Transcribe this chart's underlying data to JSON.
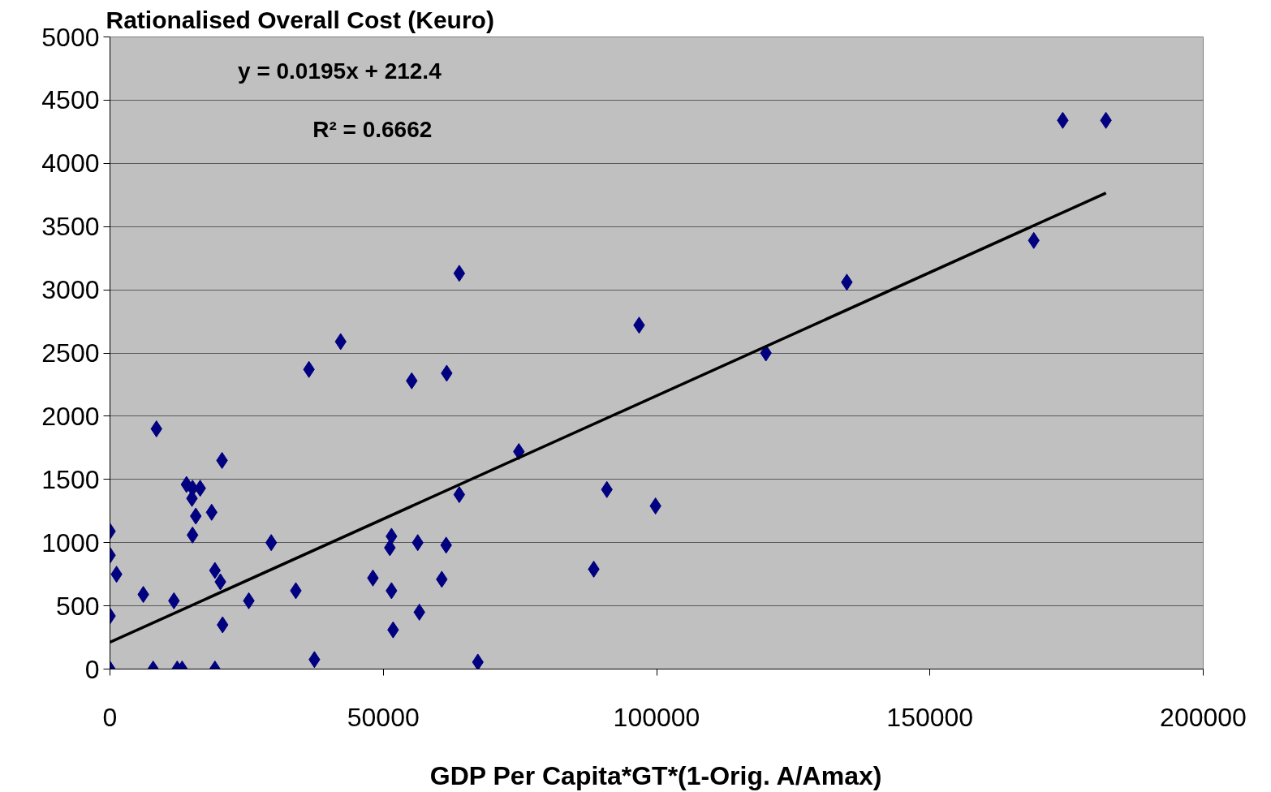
{
  "chart_data": {
    "type": "scatter",
    "title": "Rationalised Overall Cost (Keuro)",
    "xlabel": "GDP Per Capita*GT*(1-Orig. A/Amax)",
    "xlim": [
      0,
      200000
    ],
    "xticks": [
      0,
      50000,
      100000,
      150000,
      200000
    ],
    "ylim": [
      0,
      5000
    ],
    "yticks": [
      0,
      500,
      1000,
      1500,
      2000,
      2500,
      3000,
      3500,
      4000,
      4500,
      5000
    ],
    "grid": "y",
    "annotations": [
      "y = 0.0195x + 212.4",
      "R² = 0.6662"
    ],
    "series": [
      {
        "marker": "diamond",
        "color": "#000080",
        "x": [
          0,
          0,
          1200,
          0,
          0,
          6100,
          8500,
          7900,
          11700,
          12300,
          13200,
          14000,
          15100,
          16500,
          15000,
          15700,
          15100,
          18600,
          19200,
          19200,
          20500,
          20200,
          20600,
          25400,
          29500,
          34000,
          36400,
          37400,
          42200,
          48100,
          51200,
          51500,
          51500,
          51800,
          55200,
          56300,
          56600,
          61500,
          61600,
          60700,
          63900,
          63900,
          67300,
          74800,
          88500,
          90900,
          96800,
          99800,
          120000,
          134800,
          169000,
          174300,
          182200
        ],
        "values": [
          1090,
          900,
          750,
          420,
          0,
          590,
          1900,
          0,
          540,
          0,
          0,
          1460,
          1430,
          1430,
          1350,
          1210,
          1060,
          1240,
          780,
          0,
          1650,
          690,
          350,
          540,
          1000,
          620,
          2370,
          75,
          2590,
          720,
          960,
          1050,
          620,
          310,
          2280,
          1000,
          450,
          980,
          2340,
          710,
          3130,
          1380,
          55,
          1720,
          790,
          1420,
          2720,
          1290,
          2500,
          3060,
          3390,
          4340,
          4340
        ]
      },
      {
        "type": "line",
        "color": "#000000",
        "x": [
          0,
          182200
        ],
        "values": [
          212,
          3765
        ]
      }
    ]
  }
}
